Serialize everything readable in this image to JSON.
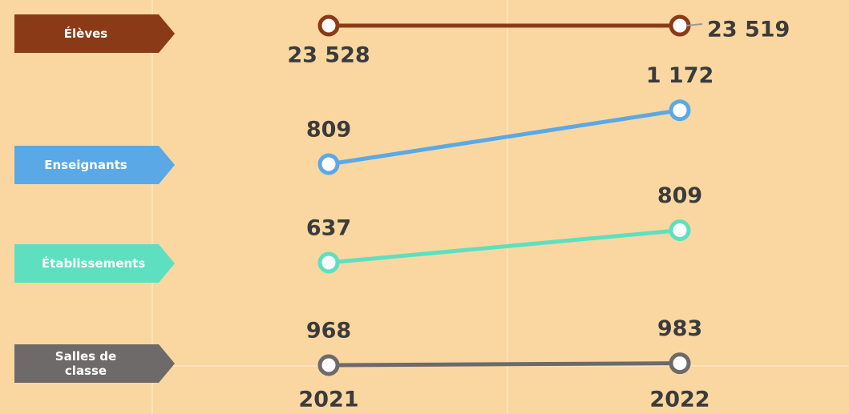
{
  "chart_data": {
    "type": "slope",
    "x": [
      "2021",
      "2022"
    ],
    "series": [
      {
        "name": "Élèves",
        "color": "#8b3a17",
        "values": [
          23528,
          23519
        ],
        "value_labels": [
          "23 528",
          "23 519"
        ]
      },
      {
        "name": "Enseignants",
        "color": "#5aa9e6",
        "values": [
          809,
          1172
        ],
        "value_labels": [
          "809",
          "1 172"
        ]
      },
      {
        "name": "Établissements",
        "color": "#5ee0c0",
        "values": [
          637,
          809
        ],
        "value_labels": [
          "637",
          "809"
        ]
      },
      {
        "name": "Salles de classe",
        "color": "#6e6a6a",
        "values": [
          968,
          983
        ],
        "value_labels": [
          "968",
          "983"
        ]
      }
    ]
  }
}
